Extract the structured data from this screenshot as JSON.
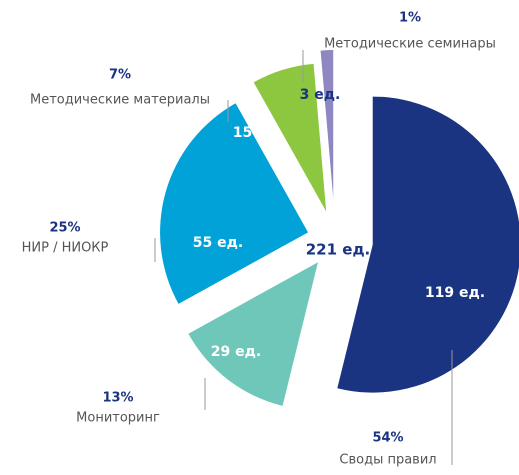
{
  "chart_data": {
    "type": "pie",
    "categories": [
      "Своды правил",
      "Мониторинг",
      "НИР / НИОКР",
      "Методические материалы",
      "Методические семинары"
    ],
    "values": [
      119,
      29,
      55,
      15,
      3
    ],
    "value_labels": [
      "119 ед.",
      "29 ед.",
      "55 ед.",
      "15 ед.",
      "3 ед."
    ],
    "percents": [
      54,
      13,
      25,
      7,
      1
    ],
    "percent_labels": [
      "54%",
      "13%",
      "25%",
      "7%",
      "1%"
    ],
    "colors": [
      "#1b3481",
      "#6fc7b9",
      "#00a2d8",
      "#8dc63f",
      "#8d87c2"
    ],
    "total": {
      "value": 221,
      "label": "221 ед."
    }
  }
}
